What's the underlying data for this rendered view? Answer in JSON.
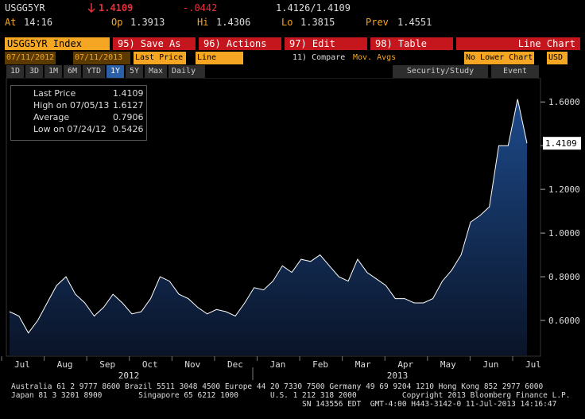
{
  "header": {
    "ticker": "USGG5YR",
    "last": 1.4109,
    "change": "-.0442",
    "bid_ask": "1.4126/1.4109",
    "stats": [
      {
        "label": "At",
        "value": "14:16"
      },
      {
        "label": "Op",
        "value": 1.3913
      },
      {
        "label": "Hi",
        "value": 1.4306
      },
      {
        "label": "Lo",
        "value": 1.3815
      },
      {
        "label": "Prev",
        "value": 1.4551
      }
    ]
  },
  "toolbar": {
    "security": "USGG5YR Index",
    "buttons": [
      "95) Save As",
      "96) Actions",
      "97) Edit",
      "98) Table"
    ],
    "view": "Line Chart"
  },
  "controls": {
    "start": "07/11/2012",
    "end": "07/11/2013",
    "field": "Last Price",
    "style": "Line",
    "compare": "11) Compare",
    "studies": "Mov. Avgs",
    "lower": "No Lower Chart",
    "currency": "USD"
  },
  "periods": {
    "items": [
      "1D",
      "3D",
      "1M",
      "6M",
      "YTD",
      "1Y",
      "5Y",
      "Max"
    ],
    "active": "1Y",
    "frequency": "Daily",
    "study": "Security/Study",
    "event": "Event"
  },
  "legend": [
    {
      "label": "Last Price",
      "value": 1.4109
    },
    {
      "label": "High on 07/05/13",
      "value": 1.6127
    },
    {
      "label": "Average",
      "value": 0.7906
    },
    {
      "label": "Low on 07/24/12",
      "value": 0.5426
    }
  ],
  "chart_data": {
    "type": "area",
    "color": "#ffffff",
    "fill": "#1d4a8a",
    "values": [
      0.64,
      0.62,
      0.5426,
      0.6,
      0.68,
      0.76,
      0.8,
      0.72,
      0.68,
      0.62,
      0.66,
      0.72,
      0.68,
      0.63,
      0.64,
      0.7,
      0.8,
      0.78,
      0.72,
      0.7,
      0.66,
      0.63,
      0.65,
      0.64,
      0.62,
      0.68,
      0.75,
      0.74,
      0.78,
      0.85,
      0.82,
      0.88,
      0.87,
      0.9,
      0.85,
      0.8,
      0.78,
      0.88,
      0.82,
      0.79,
      0.76,
      0.7,
      0.7,
      0.68,
      0.68,
      0.7,
      0.78,
      0.83,
      0.9,
      1.05,
      1.08,
      1.12,
      1.4,
      1.4,
      1.6127,
      1.4109
    ],
    "ylim": [
      0.44,
      1.71
    ],
    "yticks": [
      {
        "value": 0.6,
        "label": "0.6000"
      },
      {
        "value": 0.8,
        "label": "0.8000"
      },
      {
        "value": 1.0,
        "label": "1.0000"
      },
      {
        "value": 1.2,
        "label": "1.2000"
      },
      {
        "value": 1.4,
        "label": "1.4000"
      },
      {
        "value": 1.6,
        "label": "1.6000"
      }
    ],
    "last_label": "1.4109",
    "months": [
      "Jul",
      "Aug",
      "Sep",
      "Oct",
      "Nov",
      "Dec",
      "Jan",
      "Feb",
      "Mar",
      "Apr",
      "May",
      "Jun",
      "Jul"
    ],
    "years": [
      "2012",
      "2013"
    ]
  },
  "footer": [
    "Australia 61 2 9777 8600 Brazil 5511 3048 4500 Europe 44 20 7330 7500 Germany 49 69 9204 1210 Hong Kong 852 2977 6000",
    "Japan 81 3 3201 8900        Singapore 65 6212 1000       U.S. 1 212 318 2000          Copyright 2013 Bloomberg Finance L.P.",
    "SN 143556 EDT  GMT-4:00 H443-3142-0 11-Jul-2013 14:16:47"
  ]
}
